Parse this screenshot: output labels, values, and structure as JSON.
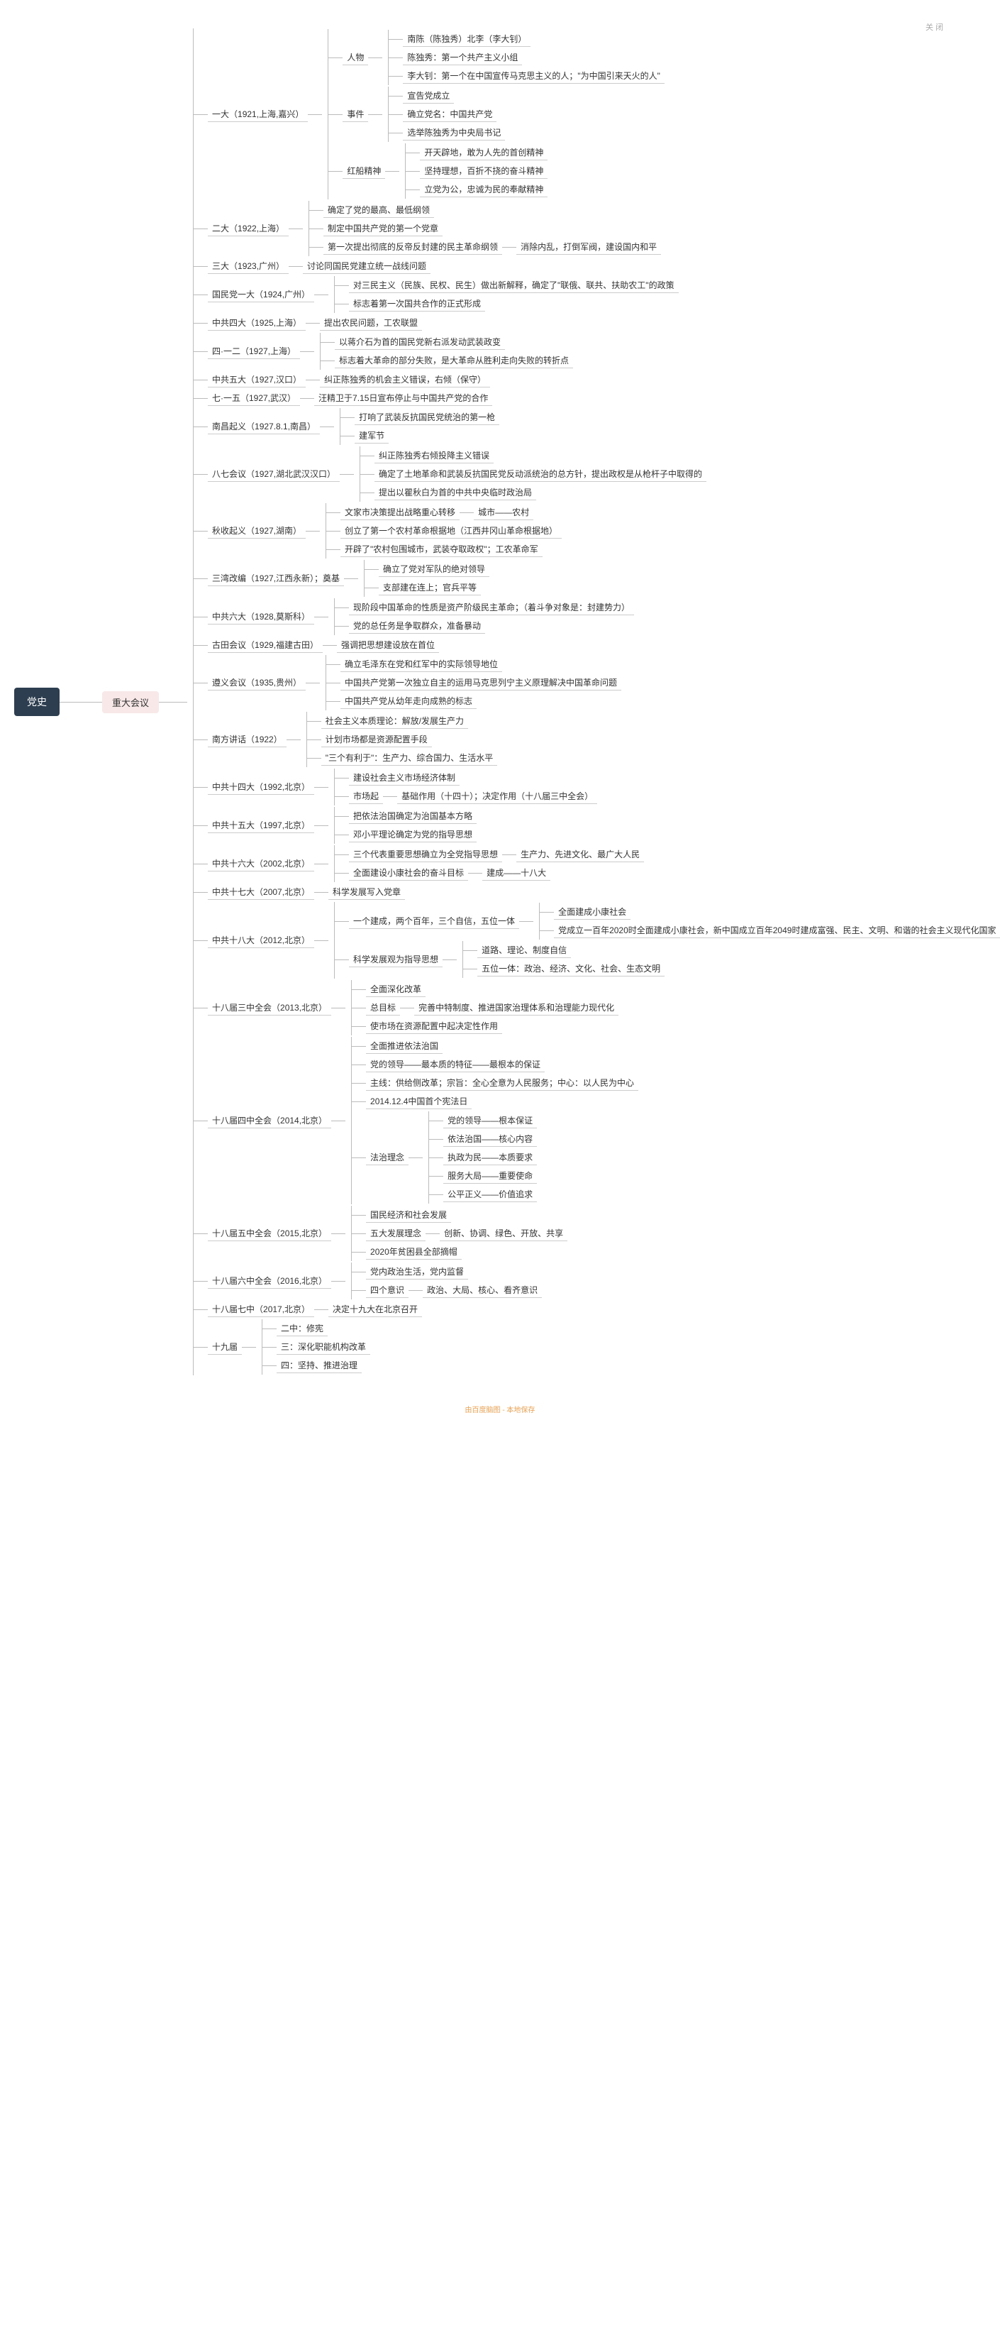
{
  "topright": "关 闭",
  "root": "党史",
  "l1": "重大会议",
  "footer": "由百度脑图 - 本地保存",
  "colors": {
    "root_bg": "#2c3e50",
    "root_fg": "#ffffff",
    "l1_bg": "#f8e8e8",
    "line": "#bbbbbb",
    "text": "#333333"
  },
  "t": {
    "yida": "一大（1921,上海,嘉兴）",
    "renwu": "人物",
    "nanchen": "南陈（陈独秀）北李（李大钊）",
    "chenduxiu": "陈独秀：第一个共产主义小组",
    "lidazhao": "李大钊：第一个在中国宣传马克思主义的人；\"为中国引来天火的人\"",
    "shijian": "事件",
    "xuangao": "宣告党成立",
    "queliDM": "确立党名：中国共产党",
    "xuanju": "选举陈独秀为中央局书记",
    "hongchuan": "红船精神",
    "kaitian": "开天辟地，敢为人先的首创精神",
    "jianchi": "坚持理想，百折不挠的奋斗精神",
    "lidang": "立党为公，忠诚为民的奉献精神",
    "erda": "二大（1922,上海）",
    "queding_gl": "确定了党的最高、最低纲领",
    "zhiding_dz": "制定中国共产党的第一个党章",
    "diyici_ti": "第一次提出彻底的反帝反封建的民主革命纲领",
    "xiaochu": "消除内乱，打倒军阀，建设国内和平",
    "sanda": "三大（1923,广州）",
    "taolun": "讨论同国民党建立统一战线问题",
    "gmdyd": "国民党一大（1924,广州）",
    "duisanmin": "对三民主义（民族、民权、民生）做出新解释，确定了\"联俄、联共、扶助农工\"的政策",
    "biaozhi_gg": "标志着第一次国共合作的正式形成",
    "zgsida": "中共四大（1925,上海）",
    "tichu_nm": "提出农民问题，工农联盟",
    "siyier": "四·一二（1927,上海）",
    "yijiang": "以蒋介石为首的国民党新右派发动武装政变",
    "biaozhi_dg": "标志着大革命的部分失败，是大革命从胜利走向失败的转折点",
    "zgwuda": "中共五大（1927,汉口）",
    "jiuzheng_ji": "纠正陈独秀的机会主义错误，右倾（保守）",
    "qiyiwu": "七·一五（1927,武汉）",
    "wangjing": "汪精卫于7.15日宣布停止与中国共产党的合作",
    "ncqy": "南昌起义（1927.8.1,南昌）",
    "daxiang": "打响了武装反抗国民党统治的第一枪",
    "jianjun": "建军节",
    "baqi": "八七会议（1927,湖北武汉汉口）",
    "jiuzheng_cdy": "纠正陈独秀右倾投降主义错误",
    "queding_td": "确定了土地革命和武装反抗国民党反动派统治的总方针，提出政权是从枪杆子中取得的",
    "tichu_qb": "提出以瞿秋白为首的中共中央临时政治局",
    "qsqy": "秋收起义（1927,湖南）",
    "wenjia": "文家市决策提出战略重心转移",
    "chengshi": "城市——农村",
    "chuangli_ncgm": "创立了第一个农村革命根据地（江西井冈山革命根据地）",
    "kaipi": "开辟了\"农村包围城市，武装夺取政权\"；工农革命军",
    "swgb": "三湾改编（1927,江西永新）；奠基",
    "queli_dj": "确立了党对军队的绝对领导",
    "zhibu": "支部建在连上；官兵平等",
    "zgld": "中共六大（1928,莫斯科）",
    "xianjieduan": "现阶段中国革命的性质是资产阶级民主革命；（着斗争对象是：封建势力）",
    "dangde_zrw": "党的总任务是争取群众，准备暴动",
    "gthy": "古田会议（1929,福建古田）",
    "qiangdiao": "强调把思想建设放在首位",
    "zyhy": "遵义会议（1935,贵州）",
    "queli_mzd": "确立毛泽东在党和红军中的实际领导地位",
    "zgcd_dyc": "中国共产党第一次独立自主的运用马克思列宁主义原理解决中国革命问题",
    "zgcd_cyz": "中国共产党从幼年走向成熟的标志",
    "nfjh": "南方讲话（1922）",
    "shzybzl": "社会主义本质理论：解放/发展生产力",
    "jhsc": "计划市场都是资源配置手段",
    "sgyly": "\"三个有利于\"：生产力、综合国力、生活水平",
    "sssd": "中共十四大（1992,北京）",
    "js_scjj": "建设社会主义市场经济体制",
    "scqi": "市场起",
    "jczy": "基础作用（十四十）；决定作用（十八届三中全会）",
    "swd": "中共十五大（1997,北京）",
    "bayf": "把依法治国确定为治国基本方略",
    "dxp": "邓小平理论确定为党的指导思想",
    "sld": "中共十六大（2002,北京）",
    "sgdb": "三个代表重要思想确立为全党指导思想",
    "scl": "生产力、先进文化、最广大人民",
    "qmjs": "全面建设小康社会的奋斗目标",
    "jianc": "建成——十八大",
    "sqd": "中共十七大（2007,北京）",
    "kxfz_xr": "科学发展写入党章",
    "sbd": "中共十八大（2012,北京）",
    "yg_jc": "一个建成，两个百年，三个自信，五位一体",
    "qmjc_xk": "全面建成小康社会",
    "dcl_by": "党成立一百年2020时全面建成小康社会，新中国成立百年2049时建成富强、民主、文明、和谐的社会主义现代化国家",
    "kxfzg_zd": "科学发展观为指导思想",
    "dllz": "道路、理论、制度自信",
    "wwyt": "五位一体：政治、经济、文化、社会、生态文明",
    "sbjszqh": "十八届三中全会（2013,北京）",
    "qmshgg": "全面深化改革",
    "zongmubiao": "总目标",
    "wszt": "完善中特制度、推进国家治理体系和治理能力现代化",
    "shishichang": "使市场在资源配置中起决定性作用",
    "sbjszqh4": "十八届四中全会（2014,北京）",
    "qmtj_yfzg": "全面推进依法治国",
    "ddld": "党的领导——最本质的特征——最根本的保证",
    "zhuxian": "主线：供给侧改革；宗旨：全心全意为人民服务；中心：以人民为中心",
    "xianfari": "2014.12.4中国首个宪法日",
    "fzln": "法治理念",
    "ddld2": "党的领导——根本保证",
    "yfzg": "依法治国——核心内容",
    "zzwm": "执政为民——本质要求",
    "fwdj": "服务大局——重要使命",
    "gpzy": "公平正义——价值追求",
    "sbjwzqh": "十八届五中全会（2015,北京）",
    "gmjj": "国民经济和社会发展",
    "wdfz": "五大发展理念",
    "cxxt": "创新、协调、绿色、开放、共享",
    "qtuopin": "2020年贫困县全部摘帽",
    "sbjlzqh": "十八届六中全会（2016,北京）",
    "dnzzsh": "党内政治生活，党内监督",
    "sgys": "四个意识",
    "zzdj": "政治、大局、核心、看齐意识",
    "sbjqz": "十八届七中（2017,北京）",
    "jueding": "决定十九大在北京召开",
    "sjj": "十九届",
    "erzhong": "二中：修宪",
    "sanzhong": "三：深化职能机构改革",
    "sizhong": "四：坚持、推进治理"
  }
}
